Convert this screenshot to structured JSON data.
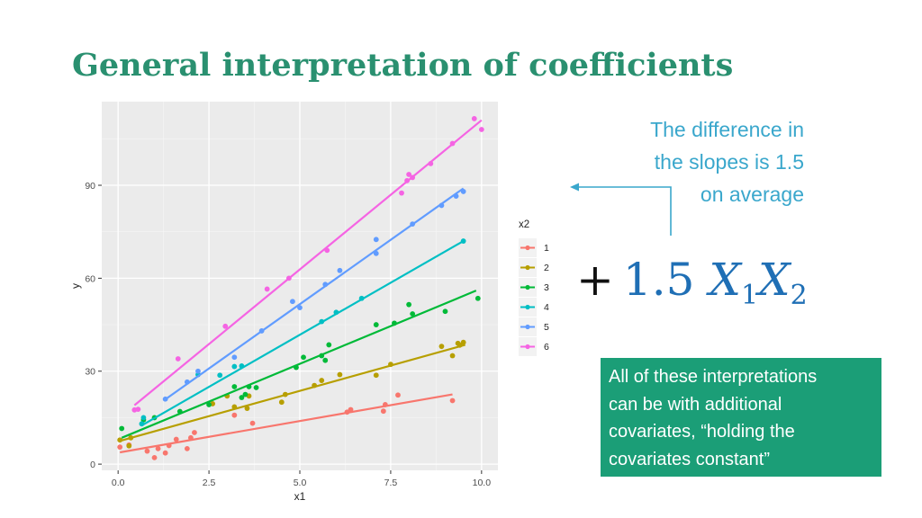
{
  "slide": {
    "title": "General interpretation of coefficients",
    "callout_lines": [
      "The difference in",
      "the slopes is 1.5",
      "on average"
    ],
    "formula": {
      "plus": "+",
      "coef": "1.5",
      "var1": "X",
      "sub1": "1",
      "var2": "X",
      "sub2": "2"
    },
    "note_lines": [
      "All of these interpretations",
      "can be with additional",
      "covariates, “holding the",
      "covariates constant”"
    ],
    "colors": {
      "title": "#2a9070",
      "callout": "#3aa7cc",
      "formula": "#1f6fb5",
      "note_bg": "#1b9e77",
      "arrow": "#3aa7cc"
    }
  },
  "chart_data": {
    "type": "scatter",
    "xlabel": "x1",
    "ylabel": "y",
    "xlim": [
      -0.45,
      10.45
    ],
    "ylim": [
      -2,
      117
    ],
    "x_ticks": [
      0.0,
      2.5,
      5.0,
      7.5,
      10.0
    ],
    "x_tick_labels": [
      "0.0",
      "2.5",
      "5.0",
      "7.5",
      "10.0"
    ],
    "y_ticks": [
      0,
      30,
      60,
      90
    ],
    "y_tick_labels": [
      "0",
      "30",
      "60",
      "90"
    ],
    "grid": true,
    "legend": {
      "title": "x2",
      "position": "right"
    },
    "series": [
      {
        "name": "1",
        "color": "#f8766d",
        "fit": [
          [
            0.05,
            3.8
          ],
          [
            9.2,
            22.5
          ]
        ],
        "points": [
          [
            0.05,
            5.5
          ],
          [
            0.3,
            6.2
          ],
          [
            0.8,
            4.2
          ],
          [
            1.0,
            2.1
          ],
          [
            1.1,
            5.0
          ],
          [
            1.3,
            3.6
          ],
          [
            1.4,
            6.0
          ],
          [
            1.6,
            8.0
          ],
          [
            1.9,
            5.0
          ],
          [
            2.0,
            8.5
          ],
          [
            2.1,
            10.2
          ],
          [
            3.2,
            15.8
          ],
          [
            3.7,
            13.2
          ],
          [
            6.3,
            16.8
          ],
          [
            6.4,
            17.6
          ],
          [
            7.3,
            17.1
          ],
          [
            7.35,
            19.2
          ],
          [
            7.7,
            22.3
          ],
          [
            9.2,
            20.5
          ]
        ]
      },
      {
        "name": "2",
        "color": "#b79f00",
        "fit": [
          [
            0.05,
            7.5
          ],
          [
            9.55,
            38.5
          ]
        ],
        "points": [
          [
            0.05,
            7.8
          ],
          [
            0.3,
            5.9
          ],
          [
            0.35,
            8.5
          ],
          [
            2.6,
            19.5
          ],
          [
            3.0,
            22.0
          ],
          [
            3.2,
            18.5
          ],
          [
            3.55,
            18.0
          ],
          [
            4.5,
            20.0
          ],
          [
            4.6,
            22.5
          ],
          [
            5.4,
            25.4
          ],
          [
            5.6,
            27.0
          ],
          [
            6.1,
            28.9
          ],
          [
            7.1,
            28.7
          ],
          [
            7.5,
            32.2
          ],
          [
            8.9,
            38.0
          ],
          [
            9.2,
            35.0
          ],
          [
            9.35,
            39.0
          ],
          [
            9.4,
            38.4
          ],
          [
            9.5,
            39.3
          ],
          [
            3.6,
            22.0
          ]
        ]
      },
      {
        "name": "3",
        "color": "#00ba38",
        "fit": [
          [
            0.1,
            8.5
          ],
          [
            9.85,
            56.0
          ]
        ],
        "points": [
          [
            0.1,
            11.5
          ],
          [
            0.7,
            14.3
          ],
          [
            1.0,
            15.0
          ],
          [
            1.7,
            17.0
          ],
          [
            2.5,
            19.2
          ],
          [
            3.2,
            25.0
          ],
          [
            3.4,
            21.5
          ],
          [
            3.5,
            22.5
          ],
          [
            3.6,
            25.0
          ],
          [
            3.8,
            24.7
          ],
          [
            4.9,
            31.2
          ],
          [
            5.1,
            34.5
          ],
          [
            5.6,
            35.0
          ],
          [
            5.7,
            33.5
          ],
          [
            5.8,
            38.5
          ],
          [
            7.1,
            45.0
          ],
          [
            7.6,
            45.5
          ],
          [
            8.0,
            51.5
          ],
          [
            8.1,
            48.5
          ],
          [
            9.0,
            49.3
          ],
          [
            9.9,
            53.5
          ]
        ]
      },
      {
        "name": "4",
        "color": "#00bfc4",
        "fit": [
          [
            0.65,
            12.5
          ],
          [
            9.5,
            72.0
          ]
        ],
        "points": [
          [
            0.65,
            13.0
          ],
          [
            0.7,
            15.0
          ],
          [
            2.2,
            28.9
          ],
          [
            2.8,
            28.7
          ],
          [
            3.2,
            31.5
          ],
          [
            3.4,
            31.7
          ],
          [
            5.6,
            46.0
          ],
          [
            6.0,
            49.0
          ],
          [
            6.7,
            53.5
          ],
          [
            9.5,
            72.0
          ]
        ]
      },
      {
        "name": "5",
        "color": "#619cff",
        "fit": [
          [
            1.25,
            20.5
          ],
          [
            9.5,
            89.0
          ]
        ],
        "points": [
          [
            1.3,
            21.0
          ],
          [
            1.9,
            26.5
          ],
          [
            2.2,
            30.0
          ],
          [
            3.2,
            34.5
          ],
          [
            3.95,
            43.0
          ],
          [
            4.8,
            52.5
          ],
          [
            5.0,
            50.5
          ],
          [
            5.7,
            58.0
          ],
          [
            6.1,
            62.5
          ],
          [
            7.1,
            68.0
          ],
          [
            7.1,
            72.5
          ],
          [
            8.1,
            77.5
          ],
          [
            8.9,
            83.5
          ],
          [
            9.3,
            86.5
          ],
          [
            9.5,
            88.0
          ]
        ]
      },
      {
        "name": "6",
        "color": "#f564e3",
        "fit": [
          [
            0.45,
            19.0
          ],
          [
            10.0,
            111.0
          ]
        ],
        "points": [
          [
            0.45,
            17.5
          ],
          [
            0.55,
            17.7
          ],
          [
            1.65,
            34.0
          ],
          [
            2.95,
            44.5
          ],
          [
            4.1,
            56.5
          ],
          [
            4.7,
            60.0
          ],
          [
            5.75,
            69.0
          ],
          [
            7.8,
            87.5
          ],
          [
            7.95,
            91.5
          ],
          [
            8.0,
            93.5
          ],
          [
            8.1,
            92.5
          ],
          [
            8.6,
            97.0
          ],
          [
            9.2,
            103.5
          ],
          [
            9.8,
            111.5
          ],
          [
            10.0,
            108.0
          ]
        ]
      }
    ]
  }
}
